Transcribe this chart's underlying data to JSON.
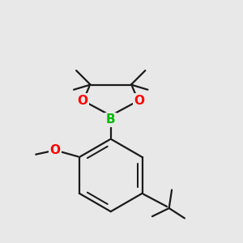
{
  "background_color": "#e8e8e8",
  "bond_color": "#1a1a1a",
  "boron_color": "#00bb00",
  "oxygen_color": "#ff0000",
  "line_width": 1.6,
  "labels": {
    "B": {
      "color": "#00bb00",
      "fontsize": 11
    },
    "O": {
      "color": "#ff0000",
      "fontsize": 11
    },
    "O_meth": {
      "color": "#ff0000",
      "fontsize": 11
    }
  },
  "figsize": [
    3.0,
    3.0
  ],
  "dpi": 100
}
